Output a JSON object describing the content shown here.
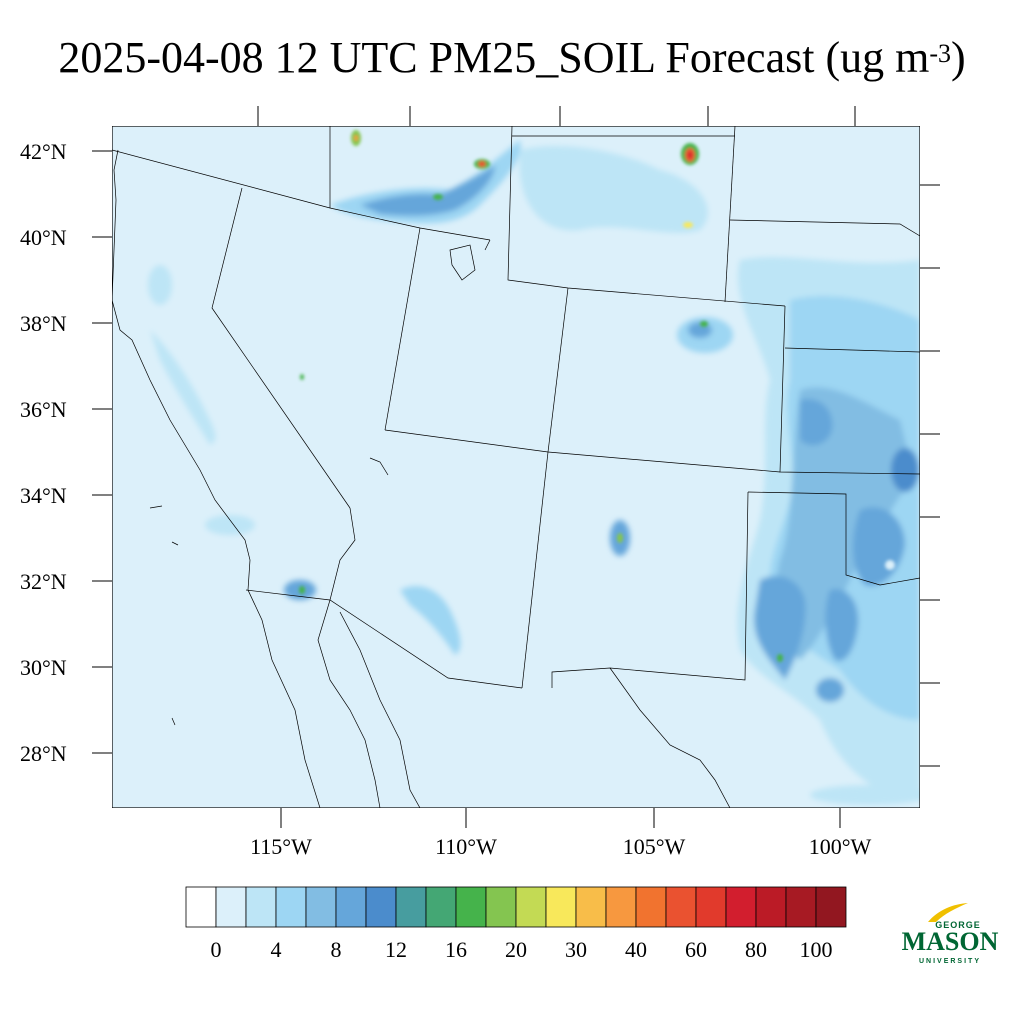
{
  "title": {
    "main": "2025-04-08 12 UTC PM25_SOIL Forecast (ug m",
    "exponent": "-3",
    "close": ")"
  },
  "map": {
    "lat_labels": [
      "42°N",
      "40°N",
      "38°N",
      "36°N",
      "34°N",
      "32°N",
      "30°N",
      "28°N"
    ],
    "lon_labels": [
      "115°W",
      "110°W",
      "105°W",
      "100°W"
    ]
  },
  "colorbar": {
    "labels": [
      "0",
      "4",
      "8",
      "12",
      "16",
      "20",
      "30",
      "40",
      "60",
      "80",
      "100"
    ],
    "colors": [
      "#ffffff",
      "#dcf0fa",
      "#bde5f6",
      "#9dd6f3",
      "#82bde3",
      "#65a6da",
      "#4b8ccc",
      "#479d9f",
      "#44a774",
      "#45b34b",
      "#84c550",
      "#c3da54",
      "#f8e85b",
      "#f8bd49",
      "#f7983f",
      "#f1732f",
      "#ea5230",
      "#e13a2c",
      "#d21e2e",
      "#bb1b26",
      "#a71a23",
      "#921720"
    ]
  },
  "logo": {
    "top": "GEORGE",
    "main": "MASON",
    "bottom": "UNIVERSITY",
    "color": "#006633",
    "accent": "#f0c000"
  }
}
